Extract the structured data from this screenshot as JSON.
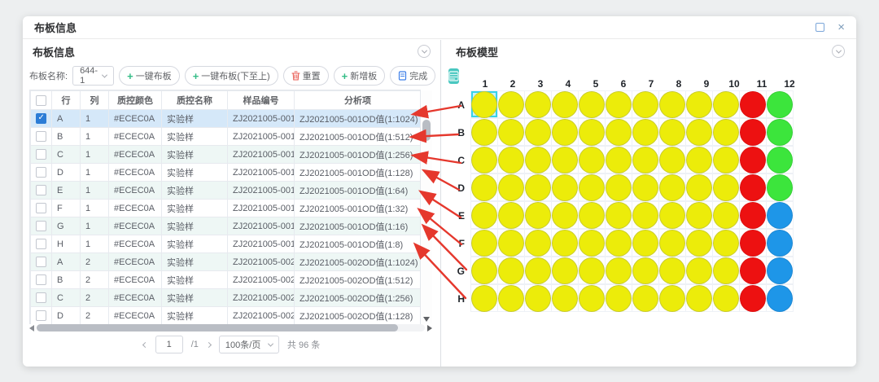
{
  "window": {
    "title": "布板信息"
  },
  "left_panel": {
    "title": "布板信息",
    "toolbar": {
      "plate_name_label": "布板名称:",
      "plate_name_value": "644-1",
      "buttons": [
        {
          "label": "一键布板",
          "icon": "plus"
        },
        {
          "label": "一键布板(下至上)",
          "icon": "plus"
        },
        {
          "label": "重置",
          "icon": "trash"
        },
        {
          "label": "新增板",
          "icon": "plus"
        },
        {
          "label": "完成",
          "icon": "document"
        }
      ]
    },
    "table": {
      "headers": [
        "行",
        "列",
        "质控颜色",
        "质控名称",
        "样品编号",
        "分析项"
      ],
      "rows": [
        {
          "checked": true,
          "selected": true,
          "cells": [
            "A",
            "1",
            "#ECEC0A",
            "实验样",
            "ZJ2021005-001",
            "ZJ2021005-001OD值(1:1024)"
          ]
        },
        {
          "checked": false,
          "selected": false,
          "cells": [
            "B",
            "1",
            "#ECEC0A",
            "实验样",
            "ZJ2021005-001",
            "ZJ2021005-001OD值(1:512)"
          ]
        },
        {
          "checked": false,
          "selected": false,
          "cells": [
            "C",
            "1",
            "#ECEC0A",
            "实验样",
            "ZJ2021005-001",
            "ZJ2021005-001OD值(1:256)"
          ]
        },
        {
          "checked": false,
          "selected": false,
          "cells": [
            "D",
            "1",
            "#ECEC0A",
            "实验样",
            "ZJ2021005-001",
            "ZJ2021005-001OD值(1:128)"
          ]
        },
        {
          "checked": false,
          "selected": false,
          "cells": [
            "E",
            "1",
            "#ECEC0A",
            "实验样",
            "ZJ2021005-001",
            "ZJ2021005-001OD值(1:64)"
          ]
        },
        {
          "checked": false,
          "selected": false,
          "cells": [
            "F",
            "1",
            "#ECEC0A",
            "实验样",
            "ZJ2021005-001",
            "ZJ2021005-001OD值(1:32)"
          ]
        },
        {
          "checked": false,
          "selected": false,
          "cells": [
            "G",
            "1",
            "#ECEC0A",
            "实验样",
            "ZJ2021005-001",
            "ZJ2021005-001OD值(1:16)"
          ]
        },
        {
          "checked": false,
          "selected": false,
          "cells": [
            "H",
            "1",
            "#ECEC0A",
            "实验样",
            "ZJ2021005-001",
            "ZJ2021005-001OD值(1:8)"
          ]
        },
        {
          "checked": false,
          "selected": false,
          "cells": [
            "A",
            "2",
            "#ECEC0A",
            "实验样",
            "ZJ2021005-002",
            "ZJ2021005-002OD值(1:1024)"
          ]
        },
        {
          "checked": false,
          "selected": false,
          "cells": [
            "B",
            "2",
            "#ECEC0A",
            "实验样",
            "ZJ2021005-002",
            "ZJ2021005-002OD值(1:512)"
          ]
        },
        {
          "checked": false,
          "selected": false,
          "cells": [
            "C",
            "2",
            "#ECEC0A",
            "实验样",
            "ZJ2021005-002",
            "ZJ2021005-002OD值(1:256)"
          ]
        },
        {
          "checked": false,
          "selected": false,
          "cells": [
            "D",
            "2",
            "#ECEC0A",
            "实验样",
            "ZJ2021005-002",
            "ZJ2021005-002OD值(1:128)"
          ]
        }
      ]
    },
    "pagination": {
      "page": "1",
      "total_pages": "/1",
      "page_size": "100条/页",
      "total_text": "共 96 条"
    }
  },
  "right_panel": {
    "title": "布板模型",
    "plate": {
      "columns": [
        "1",
        "2",
        "3",
        "4",
        "5",
        "6",
        "7",
        "8",
        "9",
        "10",
        "11",
        "12"
      ],
      "rows": [
        "A",
        "B",
        "C",
        "D",
        "E",
        "F",
        "G",
        "H"
      ],
      "selected_well": "A1",
      "colors": {
        "Y": "#ECEC0A",
        "R": "#ED1111",
        "G": "#3CE53C",
        "B": "#1E96E8"
      },
      "border_colors": {
        "Y": "#c9cb2d",
        "R": "#dd0f0f",
        "G": "#35cf35",
        "B": "#1b87d3"
      },
      "matrix": [
        [
          "Y",
          "Y",
          "Y",
          "Y",
          "Y",
          "Y",
          "Y",
          "Y",
          "Y",
          "Y",
          "R",
          "G"
        ],
        [
          "Y",
          "Y",
          "Y",
          "Y",
          "Y",
          "Y",
          "Y",
          "Y",
          "Y",
          "Y",
          "R",
          "G"
        ],
        [
          "Y",
          "Y",
          "Y",
          "Y",
          "Y",
          "Y",
          "Y",
          "Y",
          "Y",
          "Y",
          "R",
          "G"
        ],
        [
          "Y",
          "Y",
          "Y",
          "Y",
          "Y",
          "Y",
          "Y",
          "Y",
          "Y",
          "Y",
          "R",
          "G"
        ],
        [
          "Y",
          "Y",
          "Y",
          "Y",
          "Y",
          "Y",
          "Y",
          "Y",
          "Y",
          "Y",
          "R",
          "B"
        ],
        [
          "Y",
          "Y",
          "Y",
          "Y",
          "Y",
          "Y",
          "Y",
          "Y",
          "Y",
          "Y",
          "R",
          "B"
        ],
        [
          "Y",
          "Y",
          "Y",
          "Y",
          "Y",
          "Y",
          "Y",
          "Y",
          "Y",
          "Y",
          "R",
          "B"
        ],
        [
          "Y",
          "Y",
          "Y",
          "Y",
          "Y",
          "Y",
          "Y",
          "Y",
          "Y",
          "Y",
          "R",
          "B"
        ]
      ]
    }
  },
  "annotations": {
    "arrow_color": "#E5382D",
    "linked_rows": [
      "A",
      "B",
      "C",
      "D",
      "E",
      "F",
      "G",
      "H"
    ]
  }
}
